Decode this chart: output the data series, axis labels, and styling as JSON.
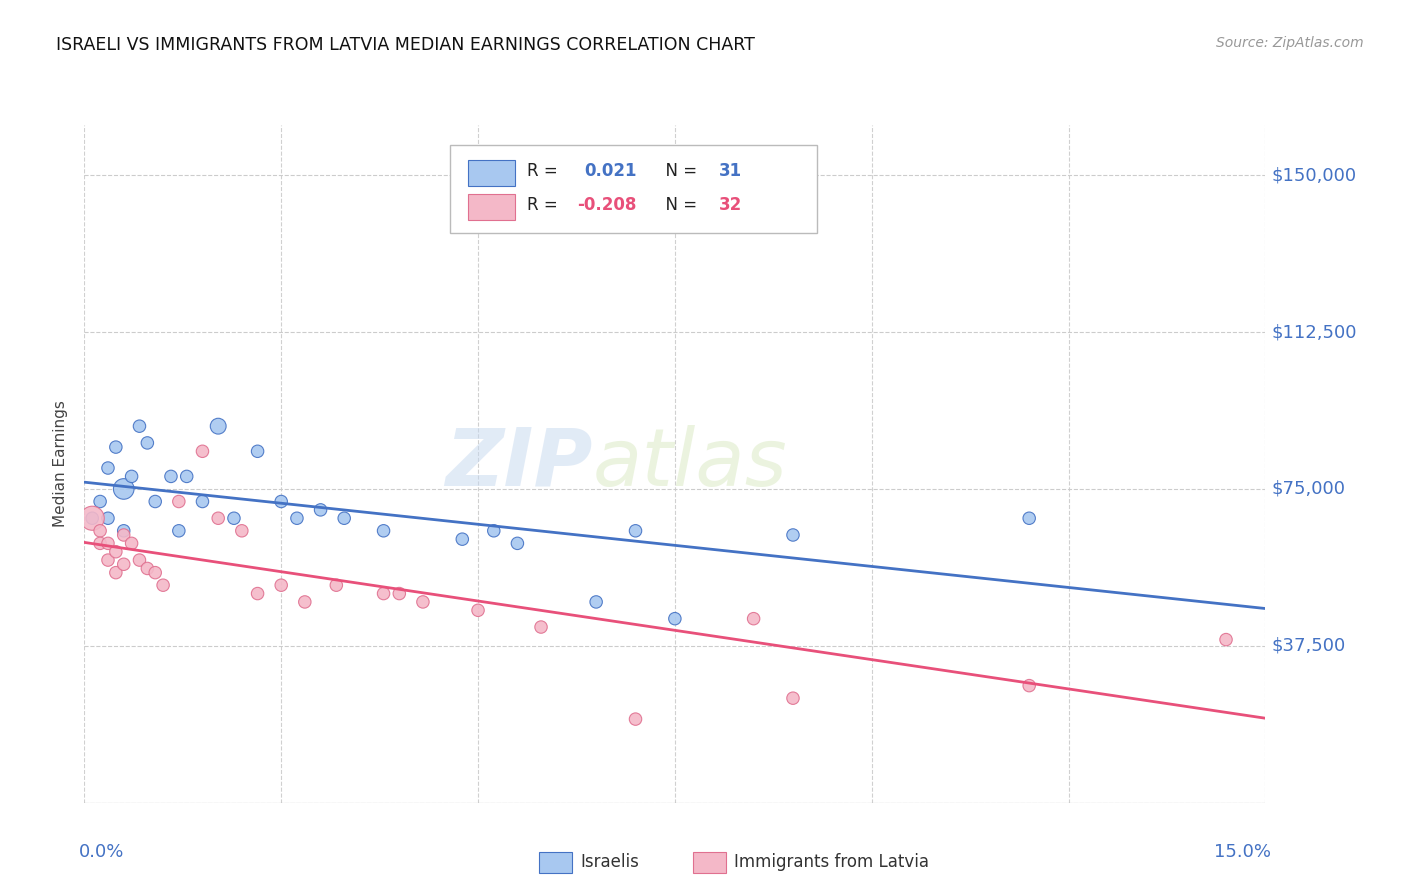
{
  "title": "ISRAELI VS IMMIGRANTS FROM LATVIA MEDIAN EARNINGS CORRELATION CHART",
  "source": "Source: ZipAtlas.com",
  "ylabel": "Median Earnings",
  "ylim": [
    0,
    162000
  ],
  "xlim": [
    0.0,
    0.15
  ],
  "watermark_zip": "ZIP",
  "watermark_atlas": "atlas",
  "yticks": [
    0,
    37500,
    75000,
    112500,
    150000
  ],
  "blue_color": "#a8c8f0",
  "blue_edge": "#4472c4",
  "pink_color": "#f4b8c8",
  "pink_edge": "#e07090",
  "line_blue": "#4472c4",
  "line_pink": "#e8507a",
  "israelis_x": [
    0.001,
    0.002,
    0.003,
    0.003,
    0.004,
    0.005,
    0.005,
    0.006,
    0.007,
    0.008,
    0.009,
    0.011,
    0.012,
    0.013,
    0.015,
    0.017,
    0.019,
    0.022,
    0.025,
    0.027,
    0.03,
    0.033,
    0.038,
    0.048,
    0.052,
    0.055,
    0.065,
    0.07,
    0.075,
    0.09,
    0.12
  ],
  "israelis_y": [
    68000,
    72000,
    68000,
    80000,
    85000,
    75000,
    65000,
    78000,
    90000,
    86000,
    72000,
    78000,
    65000,
    78000,
    72000,
    90000,
    68000,
    84000,
    72000,
    68000,
    70000,
    68000,
    65000,
    63000,
    65000,
    62000,
    48000,
    65000,
    44000,
    64000,
    68000
  ],
  "israelis_size": [
    80,
    80,
    80,
    80,
    80,
    220,
    80,
    80,
    80,
    80,
    80,
    80,
    80,
    80,
    80,
    130,
    80,
    80,
    80,
    80,
    80,
    80,
    80,
    80,
    80,
    80,
    80,
    80,
    80,
    80,
    80
  ],
  "latvia_x": [
    0.001,
    0.002,
    0.002,
    0.003,
    0.003,
    0.004,
    0.004,
    0.005,
    0.005,
    0.006,
    0.007,
    0.008,
    0.009,
    0.01,
    0.012,
    0.015,
    0.017,
    0.02,
    0.022,
    0.025,
    0.028,
    0.032,
    0.038,
    0.04,
    0.043,
    0.05,
    0.058,
    0.07,
    0.085,
    0.09,
    0.12,
    0.145
  ],
  "latvia_y": [
    68000,
    65000,
    62000,
    62000,
    58000,
    60000,
    55000,
    57000,
    64000,
    62000,
    58000,
    56000,
    55000,
    52000,
    72000,
    84000,
    68000,
    65000,
    50000,
    52000,
    48000,
    52000,
    50000,
    50000,
    48000,
    46000,
    42000,
    20000,
    44000,
    25000,
    28000,
    39000
  ],
  "latvia_size": [
    300,
    80,
    80,
    80,
    80,
    80,
    80,
    80,
    80,
    80,
    80,
    80,
    80,
    80,
    80,
    80,
    80,
    80,
    80,
    80,
    80,
    80,
    80,
    80,
    80,
    80,
    80,
    80,
    80,
    80,
    80,
    80
  ]
}
